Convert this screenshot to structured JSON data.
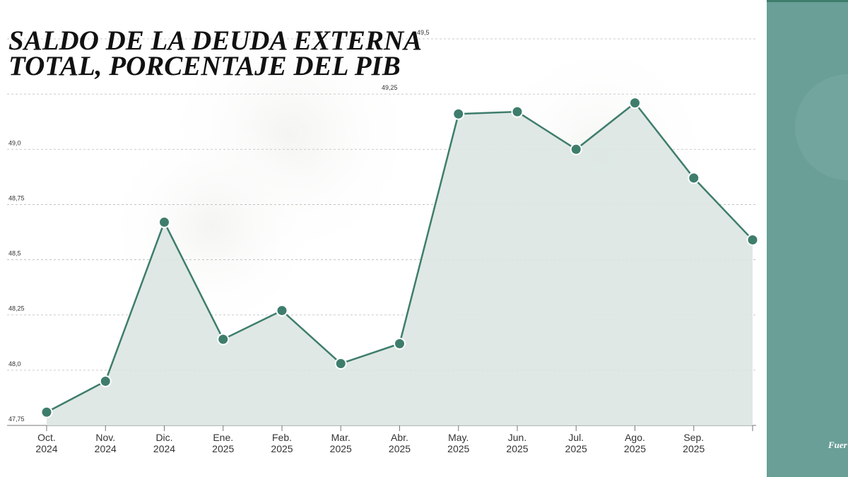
{
  "chart_data": {
    "type": "line",
    "title": [
      "SALDO DE LA DEUDA EXTERNA",
      "TOTAL, PORCENTAJE DEL PIB"
    ],
    "categories": [
      [
        "Oct.",
        "2024"
      ],
      [
        "Nov.",
        "2024"
      ],
      [
        "Dic.",
        "2024"
      ],
      [
        "Ene.",
        "2025"
      ],
      [
        "Feb.",
        "2025"
      ],
      [
        "Mar.",
        "2025"
      ],
      [
        "Abr.",
        "2025"
      ],
      [
        "May.",
        "2025"
      ],
      [
        "Jun.",
        "2025"
      ],
      [
        "Jul.",
        "2025"
      ],
      [
        "Ago.",
        "2025"
      ],
      [
        "Sep.",
        "2025"
      ],
      null
    ],
    "values": [
      47.81,
      47.95,
      48.67,
      48.14,
      48.27,
      48.03,
      48.12,
      49.16,
      49.17,
      49.0,
      49.21,
      48.87,
      48.59
    ],
    "color": "#3e7d6c",
    "area_color": "#dce5e2",
    "ylim": [
      47.75,
      49.5
    ],
    "yticks": [
      {
        "value": 47.75,
        "label": "47,75"
      },
      {
        "value": 48.0,
        "label": "48,0"
      },
      {
        "value": 48.25,
        "label": "48,25"
      },
      {
        "value": 48.5,
        "label": "48,5"
      },
      {
        "value": 48.75,
        "label": "48,75"
      },
      {
        "value": 49.0,
        "label": "49,0"
      },
      {
        "value": 49.25,
        "label": "49,25"
      },
      {
        "value": 49.5,
        "label": "49,5"
      }
    ],
    "grid": true,
    "source": "Fuer"
  }
}
